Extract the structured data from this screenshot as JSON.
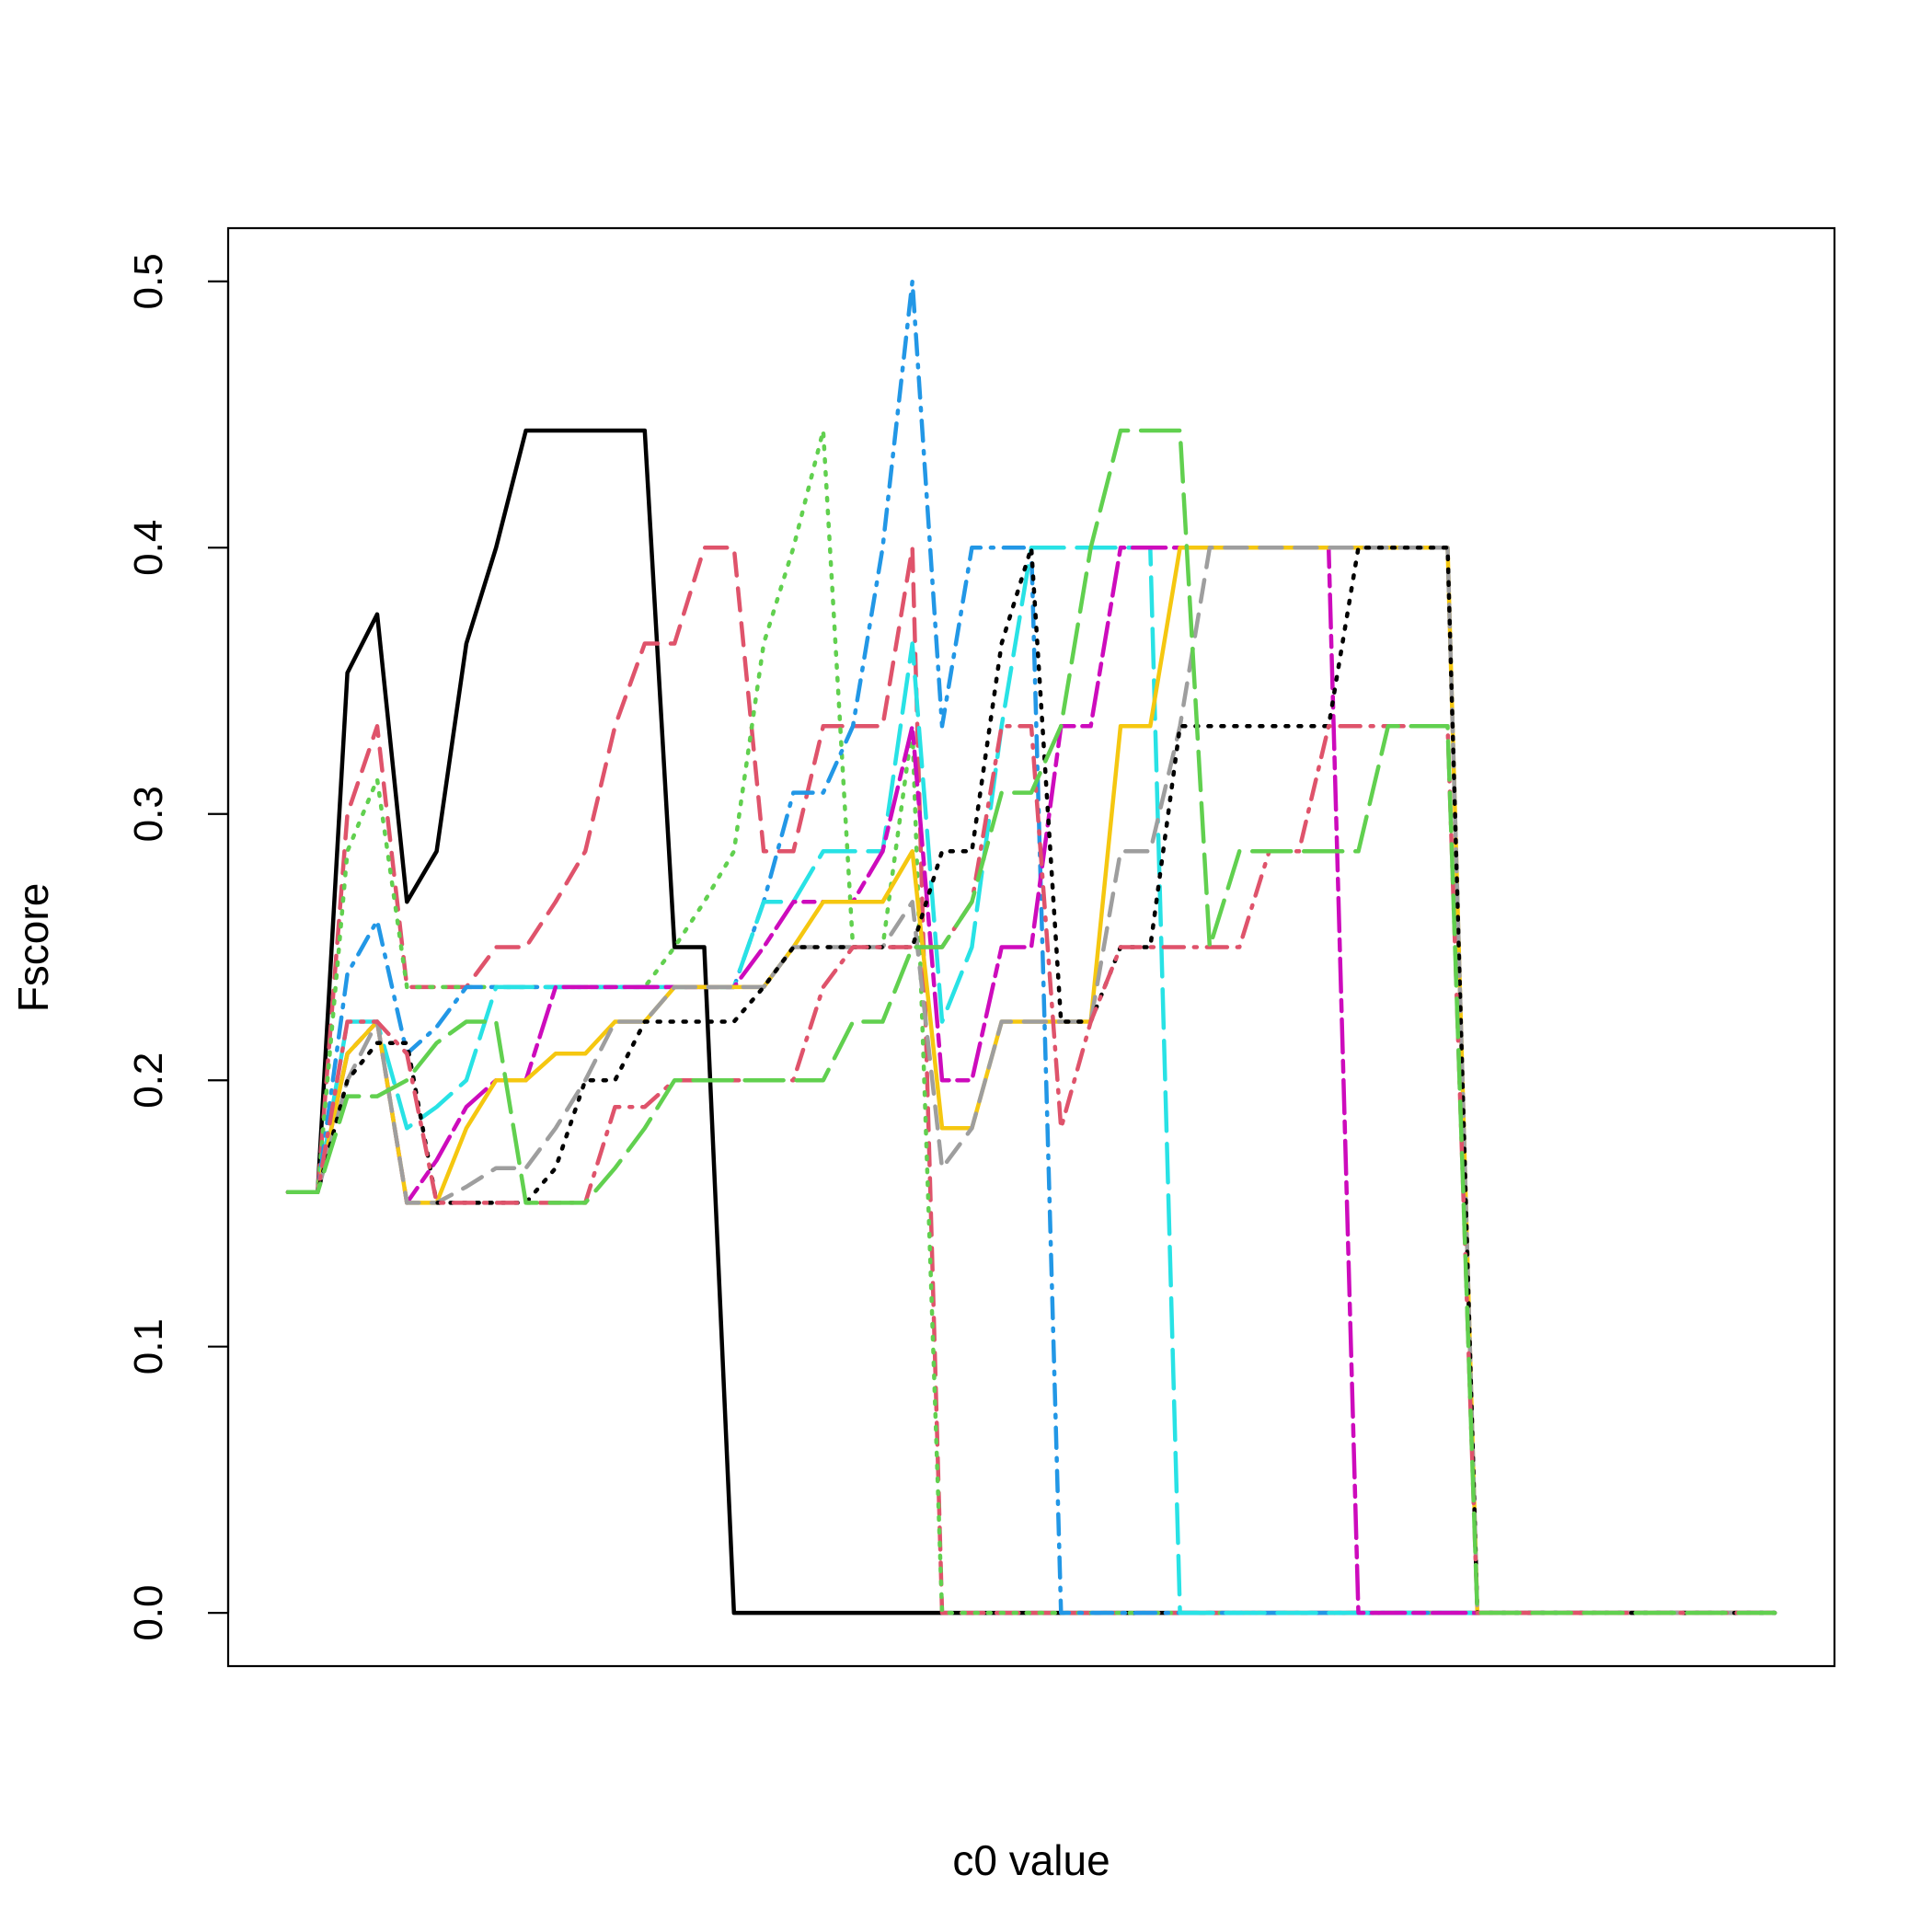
{
  "chart_data": {
    "type": "line",
    "title": "",
    "xlabel": "c0 value",
    "ylabel": "Fscore",
    "x_ticks_shown": false,
    "ylim": [
      -0.02,
      0.52
    ],
    "yticks": [
      0.0,
      0.1,
      0.2,
      0.3,
      0.4,
      0.5
    ],
    "ytick_labels": [
      "0.0",
      "0.1",
      "0.2",
      "0.3",
      "0.4",
      "0.5"
    ],
    "grid": false,
    "legend": "none",
    "x": [
      1,
      2,
      3,
      4,
      5,
      6,
      7,
      8,
      9,
      10,
      11,
      12,
      13,
      14,
      15,
      16,
      17,
      18,
      19,
      20,
      21,
      22,
      23,
      24,
      25,
      26,
      27,
      28,
      29,
      30,
      31,
      32,
      33,
      34,
      35,
      36,
      37,
      38,
      39,
      40,
      41,
      42,
      43,
      44,
      45,
      46,
      47,
      48,
      49,
      50,
      51
    ],
    "series": [
      {
        "color": "#000000",
        "dash": "solid",
        "values": [
          0.158,
          0.158,
          0.353,
          0.375,
          0.267,
          0.286,
          0.364,
          0.4,
          0.444,
          0.444,
          0.444,
          0.444,
          0.444,
          0.25,
          0.25,
          0,
          0,
          0,
          0,
          0,
          0,
          0,
          0,
          0,
          0,
          0,
          0,
          0,
          0,
          0,
          0,
          0,
          0,
          0,
          0,
          0,
          0,
          0,
          0,
          0,
          0,
          0,
          0,
          0,
          0,
          0,
          0,
          0,
          0,
          0,
          0
        ]
      },
      {
        "color": "#DF536B",
        "dash": "dashed",
        "values": [
          0.158,
          0.158,
          0.3,
          0.333,
          0.235,
          0.235,
          0.235,
          0.25,
          0.25,
          0.267,
          0.286,
          0.333,
          0.364,
          0.364,
          0.4,
          0.4,
          0.286,
          0.286,
          0.333,
          0.333,
          0.333,
          0.4,
          0,
          0,
          0,
          0,
          0,
          0,
          0,
          0,
          0,
          0,
          0,
          0,
          0,
          0,
          0,
          0,
          0,
          0,
          0,
          0,
          0,
          0,
          0,
          0,
          0,
          0,
          0,
          0,
          0
        ]
      },
      {
        "color": "#61D04F",
        "dash": "dotted",
        "values": [
          0.158,
          0.158,
          0.286,
          0.313,
          0.235,
          0.235,
          0.235,
          0.235,
          0.235,
          0.235,
          0.235,
          0.235,
          0.235,
          0.25,
          0.267,
          0.286,
          0.364,
          0.4,
          0.444,
          0.25,
          0.25,
          0.333,
          0,
          0,
          0,
          0,
          0,
          0,
          0,
          0,
          0,
          0,
          0,
          0,
          0,
          0,
          0,
          0,
          0,
          0,
          0,
          0,
          0,
          0,
          0,
          0,
          0,
          0,
          0,
          0,
          0
        ]
      },
      {
        "color": "#2297E6",
        "dash": "dotdash",
        "values": [
          0.158,
          0.158,
          0.24,
          0.26,
          0.21,
          0.22,
          0.235,
          0.235,
          0.235,
          0.235,
          0.235,
          0.235,
          0.235,
          0.235,
          0.235,
          0.235,
          0.267,
          0.308,
          0.308,
          0.333,
          0.4,
          0.5,
          0.333,
          0.4,
          0.4,
          0.4,
          0,
          0,
          0,
          0,
          0,
          0,
          0,
          0,
          0,
          0,
          0,
          0,
          0,
          0,
          0,
          0,
          0,
          0,
          0,
          0,
          0,
          0,
          0,
          0,
          0
        ]
      },
      {
        "color": "#28E2E5",
        "dash": "longdash",
        "values": [
          0.158,
          0.158,
          0.222,
          0.222,
          0.182,
          0.19,
          0.2,
          0.235,
          0.235,
          0.235,
          0.235,
          0.235,
          0.235,
          0.235,
          0.235,
          0.235,
          0.267,
          0.267,
          0.286,
          0.286,
          0.286,
          0.364,
          0.222,
          0.25,
          0.333,
          0.4,
          0.4,
          0.4,
          0.4,
          0.4,
          0,
          0,
          0,
          0,
          0,
          0,
          0,
          0,
          0,
          0,
          0,
          0,
          0,
          0,
          0,
          0,
          0,
          0,
          0,
          0,
          0
        ]
      },
      {
        "color": "#CD0BBC",
        "dash": "twodash",
        "values": [
          0.158,
          0.158,
          0.21,
          0.222,
          0.154,
          0.17,
          0.19,
          0.2,
          0.2,
          0.235,
          0.235,
          0.235,
          0.235,
          0.235,
          0.235,
          0.235,
          0.25,
          0.267,
          0.267,
          0.267,
          0.286,
          0.333,
          0.2,
          0.2,
          0.25,
          0.25,
          0.333,
          0.333,
          0.4,
          0.4,
          0.4,
          0.4,
          0.4,
          0.4,
          0.4,
          0.4,
          0,
          0,
          0,
          0,
          0,
          0,
          0,
          0,
          0,
          0,
          0,
          0,
          0,
          0,
          0
        ]
      },
      {
        "color": "#F5C710",
        "dash": "solid",
        "values": [
          0.158,
          0.158,
          0.21,
          0.222,
          0.154,
          0.154,
          0.182,
          0.2,
          0.2,
          0.21,
          0.21,
          0.222,
          0.222,
          0.235,
          0.235,
          0.235,
          0.235,
          0.25,
          0.267,
          0.267,
          0.267,
          0.286,
          0.182,
          0.182,
          0.222,
          0.222,
          0.222,
          0.222,
          0.333,
          0.333,
          0.4,
          0.4,
          0.4,
          0.4,
          0.4,
          0.4,
          0.4,
          0.4,
          0.4,
          0.4,
          0,
          0,
          0,
          0,
          0,
          0,
          0,
          0,
          0,
          0,
          0
        ]
      },
      {
        "color": "#9E9E9E",
        "dash": "dashed",
        "values": [
          0.158,
          0.158,
          0.2,
          0.222,
          0.154,
          0.154,
          0.16,
          0.167,
          0.167,
          0.182,
          0.2,
          0.222,
          0.222,
          0.235,
          0.235,
          0.235,
          0.235,
          0.25,
          0.25,
          0.25,
          0.25,
          0.267,
          0.167,
          0.182,
          0.222,
          0.222,
          0.222,
          0.222,
          0.286,
          0.286,
          0.333,
          0.4,
          0.4,
          0.4,
          0.4,
          0.4,
          0.4,
          0.4,
          0.4,
          0.4,
          0,
          0,
          0,
          0,
          0,
          0,
          0,
          0,
          0,
          0,
          0
        ]
      },
      {
        "color": "#000000",
        "dash": "dotted",
        "values": [
          0.158,
          0.158,
          0.2,
          0.214,
          0.214,
          0.154,
          0.154,
          0.154,
          0.154,
          0.167,
          0.2,
          0.2,
          0.222,
          0.222,
          0.222,
          0.222,
          0.235,
          0.25,
          0.25,
          0.25,
          0.25,
          0.25,
          0.286,
          0.286,
          0.364,
          0.4,
          0.222,
          0.222,
          0.25,
          0.25,
          0.333,
          0.333,
          0.333,
          0.333,
          0.333,
          0.333,
          0.4,
          0.4,
          0.4,
          0.4,
          0,
          0,
          0,
          0,
          0,
          0,
          0,
          0,
          0,
          0,
          0
        ]
      },
      {
        "color": "#DF536B",
        "dotdash": true,
        "dash": "dotdash",
        "values": [
          0.158,
          0.158,
          0.222,
          0.222,
          0.21,
          0.154,
          0.154,
          0.154,
          0.154,
          0.154,
          0.154,
          0.19,
          0.19,
          0.2,
          0.2,
          0.2,
          0.2,
          0.2,
          0.235,
          0.25,
          0.25,
          0.25,
          0.25,
          0.267,
          0.333,
          0.333,
          0.182,
          0.222,
          0.25,
          0.25,
          0.25,
          0.25,
          0.25,
          0.286,
          0.286,
          0.333,
          0.333,
          0.333,
          0.333,
          0.333,
          0,
          0,
          0,
          0,
          0,
          0,
          0,
          0,
          0,
          0,
          0
        ]
      },
      {
        "color": "#61D04F",
        "dash": "longdash",
        "values": [
          0.158,
          0.158,
          0.194,
          0.194,
          0.2,
          0.214,
          0.222,
          0.222,
          0.154,
          0.154,
          0.154,
          0.167,
          0.182,
          0.2,
          0.2,
          0.2,
          0.2,
          0.2,
          0.2,
          0.222,
          0.222,
          0.25,
          0.25,
          0.267,
          0.308,
          0.308,
          0.333,
          0.4,
          0.444,
          0.444,
          0.444,
          0.25,
          0.286,
          0.286,
          0.286,
          0.286,
          0.286,
          0.333,
          0.333,
          0.333,
          0,
          0,
          0,
          0,
          0,
          0,
          0,
          0,
          0,
          0,
          0
        ]
      }
    ]
  }
}
